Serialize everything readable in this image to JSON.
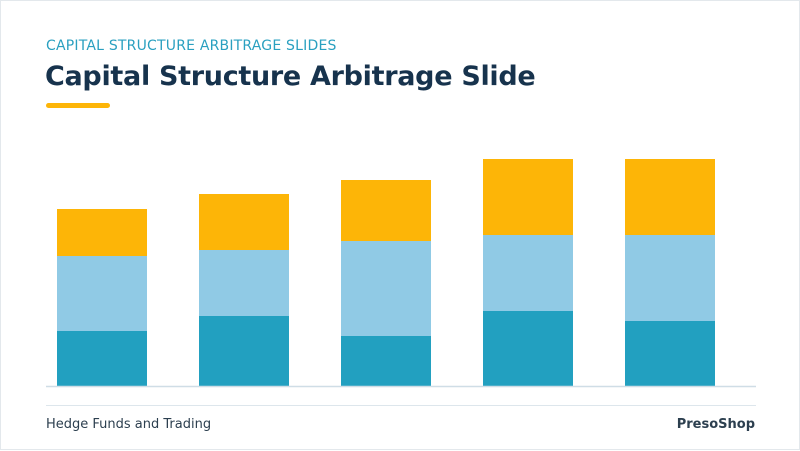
{
  "header": {
    "subtitle": "CAPITAL STRUCTURE ARBITRAGE SLIDES",
    "title": "Capital Structure Arbitrage Slide"
  },
  "footer": {
    "left_text": "Hedge Funds and Trading",
    "brand": "PresoShop"
  },
  "colors": {
    "accent": "#fdb507",
    "title": "#17334d",
    "subtitle": "#2aa0c0",
    "series_bottom": "#22a0c0",
    "series_middle": "#90cae5",
    "series_top": "#fdb507"
  },
  "chart_data": {
    "type": "bar",
    "stacked": true,
    "categories": [
      "",
      "",
      "",
      "",
      ""
    ],
    "series": [
      {
        "values": [
          55,
          70,
          50,
          75,
          65
        ],
        "color": "#22a0c0"
      },
      {
        "values": [
          75,
          66,
          95,
          76,
          86
        ],
        "color": "#90cae5"
      },
      {
        "values": [
          47,
          56,
          61,
          76,
          76
        ],
        "color": "#fdb507"
      }
    ],
    "ylim": [
      0,
      240
    ],
    "grid": false,
    "legend": "none"
  }
}
